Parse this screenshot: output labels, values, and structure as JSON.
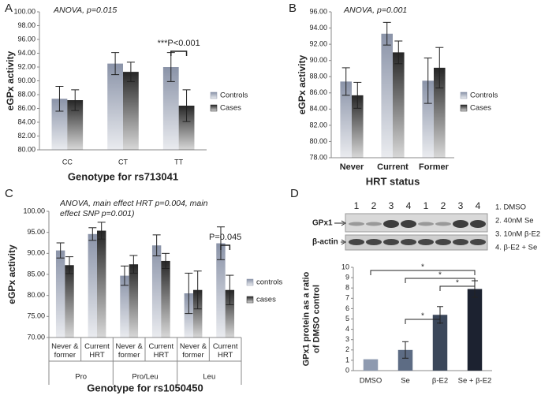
{
  "chart_data": [
    {
      "type": "bar",
      "panel": "A",
      "title": "ANOVA, p=0.015",
      "y_label": "eGPx activity",
      "x_label": "Genotype for rs713041",
      "categories": [
        "CC",
        "CT",
        "TT"
      ],
      "series": [
        {
          "name": "Controls",
          "color": "#8a93a8",
          "values": [
            87.4,
            92.5,
            92.0
          ],
          "errors": [
            1.8,
            1.6,
            2.1
          ]
        },
        {
          "name": "Cases",
          "color": "#262626",
          "values": [
            87.2,
            91.3,
            86.4
          ],
          "errors": [
            1.5,
            1.4,
            2.3
          ]
        }
      ],
      "ylim": [
        80,
        100
      ],
      "yticks": [
        {
          "value": 80,
          "label": "80.00"
        },
        {
          "value": 82,
          "label": "82.00"
        },
        {
          "value": 84,
          "label": "84.00"
        },
        {
          "value": 86,
          "label": "86.00"
        },
        {
          "value": 88,
          "label": "88.00"
        },
        {
          "value": 90,
          "label": "90.00"
        },
        {
          "value": 92,
          "label": "92.00"
        },
        {
          "value": 94,
          "label": "94.00"
        },
        {
          "value": 96,
          "label": "96.00"
        },
        {
          "value": 98,
          "label": "98.00"
        },
        {
          "value": 100,
          "label": "100.00"
        }
      ],
      "significance": [
        {
          "label": "***P<0.001",
          "category": 2
        }
      ]
    },
    {
      "type": "bar",
      "panel": "B",
      "title": "ANOVA, p=0.001",
      "y_label": "eGPx activity",
      "x_label": "HRT status",
      "categories": [
        "Never",
        "Current",
        "Former"
      ],
      "series": [
        {
          "name": "Controls",
          "color": "#8a93a8",
          "values": [
            87.4,
            93.3,
            87.5
          ],
          "errors": [
            1.7,
            1.4,
            2.8
          ]
        },
        {
          "name": "Cases",
          "color": "#262626",
          "values": [
            85.7,
            91.0,
            89.1
          ],
          "errors": [
            1.6,
            1.4,
            2.5
          ]
        }
      ],
      "ylim": [
        78,
        96
      ],
      "yticks": [
        {
          "value": 78,
          "label": "78.00"
        },
        {
          "value": 80,
          "label": "80.00"
        },
        {
          "value": 82,
          "label": "82.00"
        },
        {
          "value": 84,
          "label": "84.00"
        },
        {
          "value": 86,
          "label": "86.00"
        },
        {
          "value": 88,
          "label": "88.00"
        },
        {
          "value": 90,
          "label": "90.00"
        },
        {
          "value": 92,
          "label": "92.00"
        },
        {
          "value": 94,
          "label": "94.00"
        },
        {
          "value": 96,
          "label": "96.00"
        }
      ]
    },
    {
      "type": "bar",
      "panel": "C",
      "title": "ANOVA, main effect HRT p=0.004, main effect SNP p=0.001)",
      "y_label": "eGPx activity",
      "x_label": "Genotype for rs1050450",
      "categories": [
        "Never & former",
        "Current HRT",
        "Never & former",
        "Current HRT",
        "Never & former",
        "Current HRT"
      ],
      "groups": [
        "Pro",
        "Pro/Leu",
        "Leu"
      ],
      "series": [
        {
          "name": "controls",
          "color": "#8a93a8",
          "values": [
            90.7,
            94.6,
            84.7,
            91.9,
            80.5,
            92.4
          ],
          "errors": [
            1.8,
            1.5,
            2.3,
            2.5,
            4.8,
            3.9
          ]
        },
        {
          "name": "cases",
          "color": "#262626",
          "values": [
            87.2,
            95.4,
            87.4,
            88.2,
            81.3,
            81.3
          ],
          "errors": [
            2.0,
            2.0,
            2.1,
            1.8,
            4.5,
            3.5
          ]
        }
      ],
      "ylim": [
        70,
        100
      ],
      "yticks": [
        {
          "value": 70,
          "label": "70.00"
        },
        {
          "value": 75,
          "label": "75.00"
        },
        {
          "value": 80,
          "label": "80.00"
        },
        {
          "value": 85,
          "label": "85.00"
        },
        {
          "value": 90,
          "label": "90.00"
        },
        {
          "value": 95,
          "label": "95.00"
        },
        {
          "value": 100,
          "label": "100.00"
        }
      ],
      "significance": [
        {
          "label": "P=0.045",
          "category": 5
        }
      ]
    },
    {
      "type": "colorbar",
      "panel": "D",
      "y_label": "GPx1 protein as a ratio of DMSO control",
      "categories": [
        "DMSO",
        "Se",
        "β-E2",
        "Se + β-E2"
      ],
      "values": [
        1.1,
        2.0,
        5.4,
        7.9
      ],
      "errors": [
        null,
        0.8,
        0.8,
        0.8
      ],
      "colors": [
        "#8e9ab0",
        "#5d6c84",
        "#3b475a",
        "#1c2230"
      ],
      "ylim": [
        0,
        10
      ],
      "yticks": [
        0,
        1,
        2,
        3,
        4,
        5,
        6,
        7,
        8,
        9,
        10
      ],
      "brackets": [
        {
          "label": "*",
          "from": 0,
          "to": 3
        },
        {
          "label": "*",
          "from": 1,
          "to": 3
        },
        {
          "label": "*",
          "from": 2,
          "to": 3
        },
        {
          "label": "*",
          "from": 1,
          "to": 2
        }
      ],
      "blot": {
        "lanes": [
          "1",
          "2",
          "3",
          "4",
          "1",
          "2",
          "3",
          "4"
        ],
        "rows": [
          "GPx1",
          "β-actin"
        ],
        "treatments": [
          "1. DMSO",
          "2. 40nM Se",
          "3. 10nM β-E2",
          "4.  β-E2 + Se"
        ]
      }
    }
  ]
}
